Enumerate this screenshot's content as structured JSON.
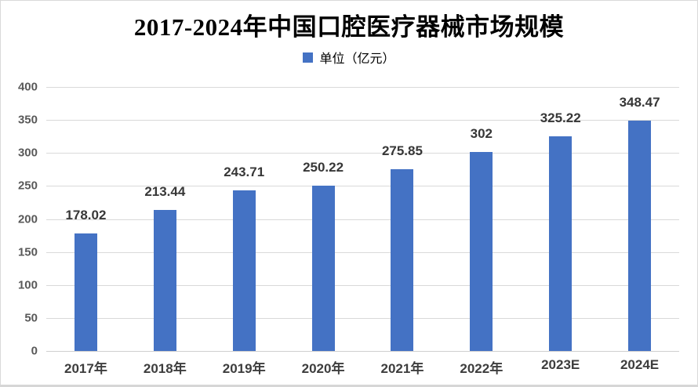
{
  "chart_data": {
    "type": "bar",
    "title": "2017-2024年中国口腔医疗器械市场规模",
    "legend": "单位（亿元）",
    "legend_position": "top",
    "categories": [
      "2017年",
      "2018年",
      "2019年",
      "2020年",
      "2021年",
      "2022年",
      "2023E",
      "2024E"
    ],
    "values": [
      178.02,
      213.44,
      243.71,
      250.22,
      275.85,
      302,
      325.22,
      348.47
    ],
    "value_labels": [
      "178.02",
      "213.44",
      "243.71",
      "250.22",
      "275.85",
      "302",
      "325.22",
      "348.47"
    ],
    "xlabel": "",
    "ylabel": "",
    "ylim": [
      0,
      400
    ],
    "yticks": [
      0,
      50,
      100,
      150,
      200,
      250,
      300,
      350,
      400
    ],
    "grid": true,
    "bar_color": "#4472c4",
    "gridline_color": "#d9d9d9"
  }
}
